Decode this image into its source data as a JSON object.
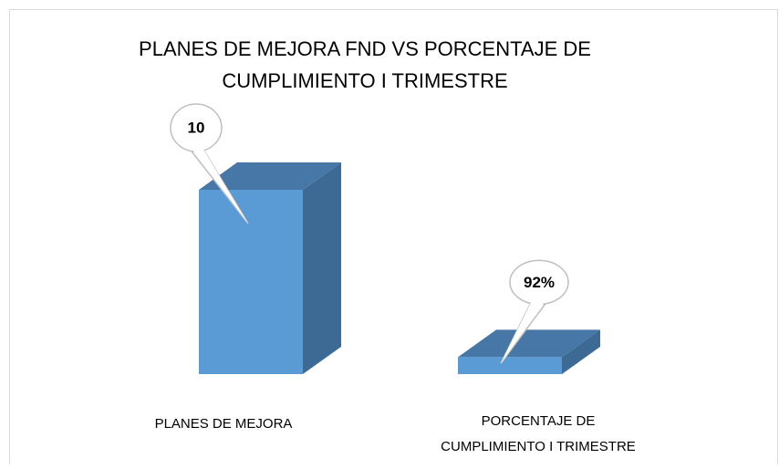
{
  "chart_data": {
    "type": "bar3d",
    "title": [
      "PLANES DE MEJORA FND VS PORCENTAJE DE",
      "CUMPLIMIENTO I TRIMESTRE"
    ],
    "categories": [
      [
        "PLANES DE MEJORA"
      ],
      [
        "PORCENTAJE DE",
        "CUMPLIMIENTO I TRIMESTRE"
      ]
    ],
    "values": [
      10,
      0.92
    ],
    "value_labels": [
      "10",
      "92%"
    ],
    "color": "#5b9bd5",
    "ylim": [
      0,
      12
    ]
  }
}
